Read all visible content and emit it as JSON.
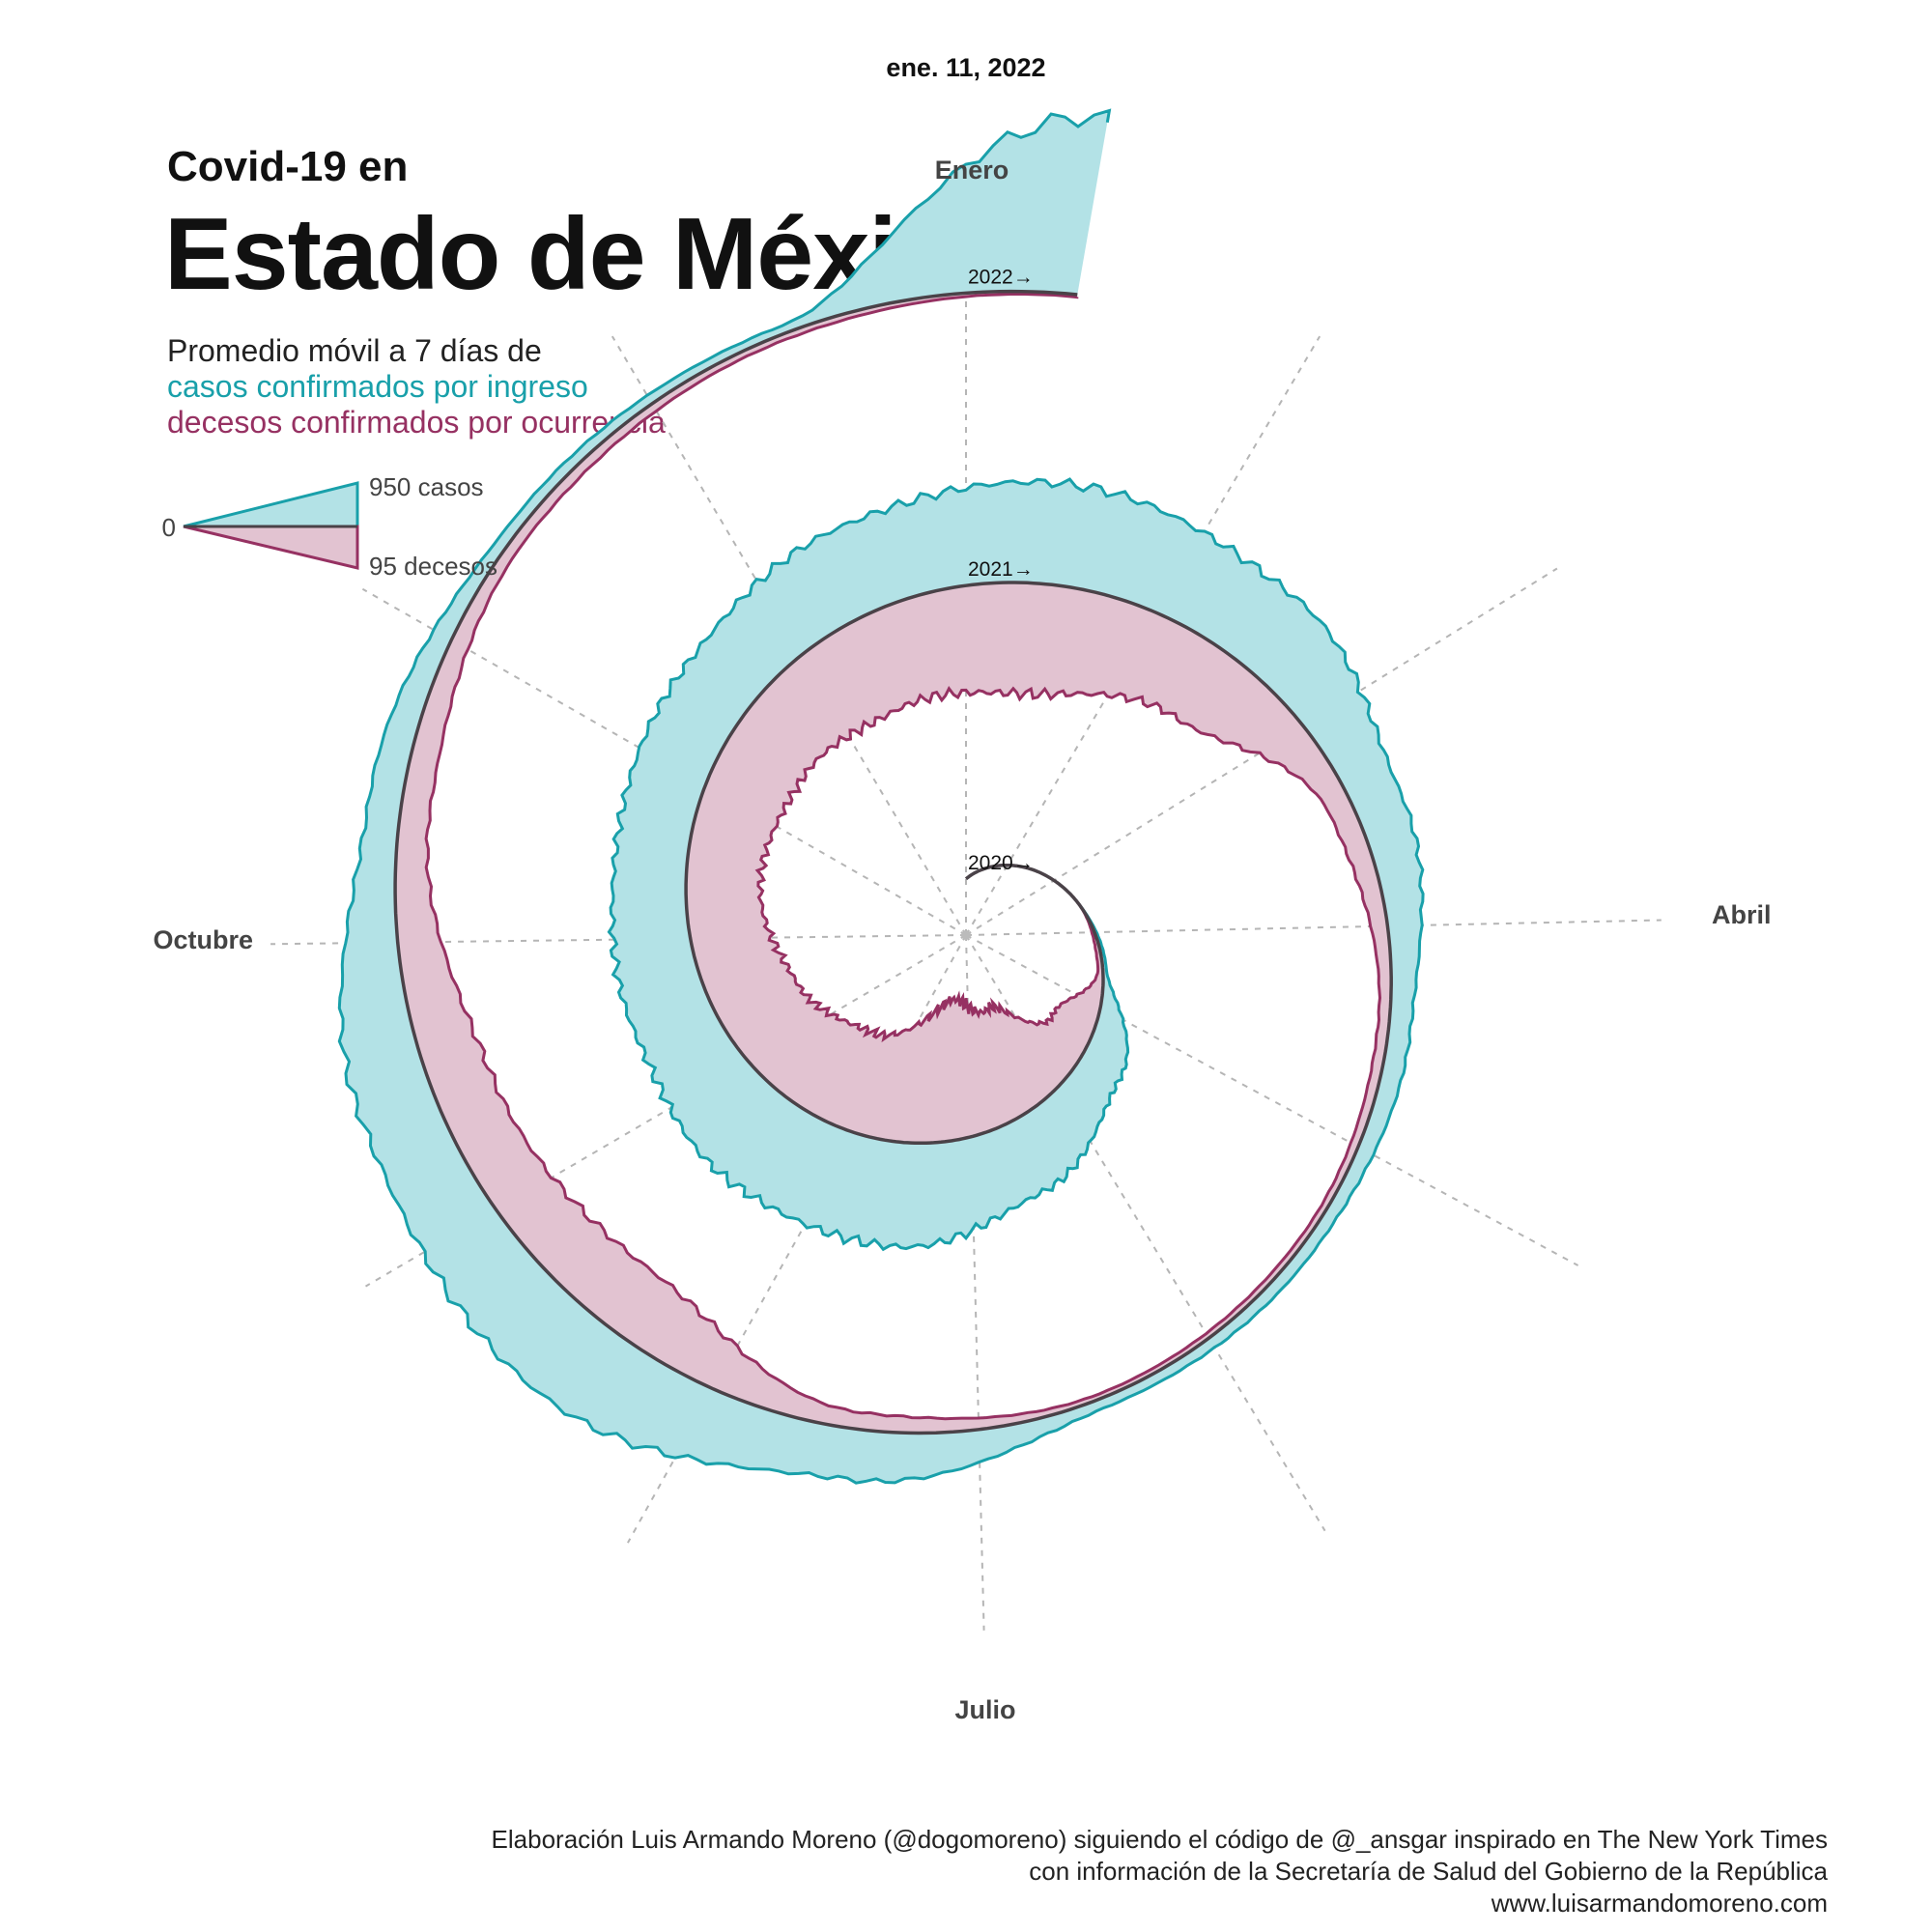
{
  "header": {
    "date": "ene. 11, 2022",
    "kicker": "Covid-19 en",
    "title": "Estado de México",
    "subtitle_line1": "Promedio móvil a 7 días de",
    "subtitle_line2": "casos confirmados por ingreso",
    "subtitle_line3": "decesos confirmados por ocurrencia"
  },
  "legend": {
    "zero": "0",
    "cases_label": "950 casos",
    "deaths_label": "95 decesos",
    "cases_color": "#19a0aa",
    "cases_fill": "#b3e2e6",
    "deaths_color": "#963162",
    "deaths_fill": "#e2c3d1",
    "baseline_color": "#4a4248"
  },
  "months": {
    "jan": "Enero",
    "apr": "Abril",
    "jul": "Julio",
    "oct": "Octubre"
  },
  "years": [
    "2020→",
    "2021→",
    "2022→"
  ],
  "credits": {
    "line1": "Elaboración Luis Armando Moreno (@dogomoreno) siguiendo el código de @_ansgar inspirado en The New York Times",
    "line2": "con información de la Secretaría de Salud del Gobierno de la República",
    "line3": "www.luisarmandomoreno.com"
  },
  "chart_data": {
    "type": "area",
    "layout": "spiral",
    "title": "Estado de México",
    "date_range": [
      "2020-03-01",
      "2022-01-11"
    ],
    "scale": {
      "cases_max": 950,
      "deaths_max": 95
    },
    "series": [
      {
        "name": "casos confirmados por ingreso",
        "x": [
          "2020-03-15",
          "2020-04-15",
          "2020-05-15",
          "2020-06-15",
          "2020-07-15",
          "2020-08-15",
          "2020-09-15",
          "2020-10-15",
          "2020-11-15",
          "2020-12-15",
          "2021-01-15",
          "2021-02-15",
          "2021-03-15",
          "2021-04-15",
          "2021-05-15",
          "2021-06-15",
          "2021-07-15",
          "2021-08-15",
          "2021-09-15",
          "2021-10-15",
          "2021-11-15",
          "2021-12-15",
          "2022-01-11"
        ],
        "values": [
          0,
          20,
          250,
          430,
          580,
          560,
          450,
          400,
          420,
          500,
          560,
          470,
          270,
          120,
          70,
          55,
          280,
          520,
          420,
          180,
          60,
          45,
          980
        ]
      },
      {
        "name": "decesos confirmados por ocurrencia",
        "x": [
          "2020-03-15",
          "2020-04-15",
          "2020-05-15",
          "2020-06-15",
          "2020-07-15",
          "2020-08-15",
          "2020-09-15",
          "2020-10-15",
          "2020-11-15",
          "2020-12-15",
          "2021-01-15",
          "2021-02-15",
          "2021-03-15",
          "2021-04-15",
          "2021-05-15",
          "2021-06-15",
          "2021-07-15",
          "2021-08-15",
          "2021-09-15",
          "2021-10-15",
          "2021-11-15",
          "2021-12-15",
          "2022-01-11"
        ],
        "values": [
          0,
          4,
          38,
          92,
          120,
          85,
          72,
          62,
          70,
          82,
          92,
          68,
          20,
          9,
          5,
          4,
          14,
          58,
          50,
          24,
          9,
          5,
          2
        ]
      }
    ]
  }
}
